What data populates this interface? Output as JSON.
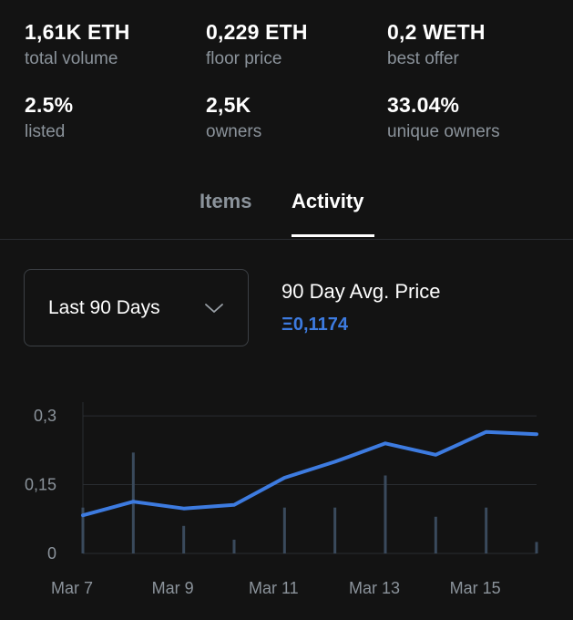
{
  "stats": [
    {
      "value": "1,61K ETH",
      "label": "total volume"
    },
    {
      "value": "0,229 ETH",
      "label": "floor price"
    },
    {
      "value": "0,2 WETH",
      "label": "best offer"
    },
    {
      "value": "2.5%",
      "label": "listed"
    },
    {
      "value": "2,5K",
      "label": "owners"
    },
    {
      "value": "33.04%",
      "label": "unique owners"
    }
  ],
  "tabs": [
    {
      "label": "Items",
      "active": false
    },
    {
      "label": "Activity",
      "active": true
    }
  ],
  "filter": {
    "selected": "Last 90 Days",
    "icon": "chevron-down-icon"
  },
  "avg_price": {
    "title": "90 Day Avg. Price",
    "value": "Ξ0,1174"
  },
  "colors": {
    "accent": "#3d7be0",
    "bars": "#3a4a5c",
    "grid": "#2a2d31",
    "muted": "#8b939b"
  },
  "chart_data": {
    "type": "line",
    "x_tick_labels": [
      "Mar 7",
      "Mar 9",
      "Mar 11",
      "Mar 13",
      "Mar 15"
    ],
    "y_tick_labels": [
      "0,3",
      "0,15",
      "0"
    ],
    "ylim": [
      0,
      0.33
    ],
    "series": [
      {
        "values": [
          0.1,
          0.22,
          0.06,
          0.03,
          0.1,
          0.1,
          0.17,
          0.08,
          0.1,
          0.025
        ]
      },
      {
        "values": [
          0.083,
          0.113,
          0.098,
          0.106,
          0.165,
          0.2,
          0.24,
          0.215,
          0.265,
          0.26
        ]
      }
    ],
    "x": [
      0,
      1,
      2,
      3,
      4,
      5,
      6,
      7,
      8,
      9
    ],
    "x_tick_positions": [
      0,
      2,
      4,
      6,
      8
    ],
    "grid": true
  }
}
